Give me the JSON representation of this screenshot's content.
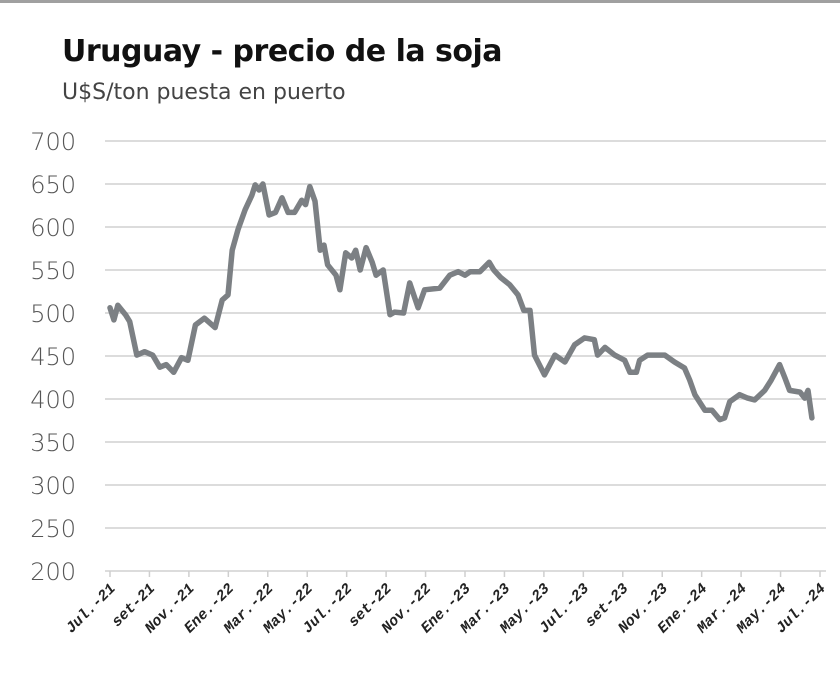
{
  "chart_data": {
    "type": "line",
    "title": "Uruguay - precio de la soja",
    "subtitle": "U$S/ton puesta en puerto",
    "xlabel": "",
    "ylabel": "",
    "ylim": [
      200,
      700
    ],
    "yticks": [
      "700",
      "650",
      "600",
      "550",
      "500",
      "450",
      "400",
      "350",
      "300",
      "250",
      "200"
    ],
    "xticks": [
      "Jul.-21",
      "set-21",
      "Nov.-21",
      "Ene.-22",
      "Mar.-22",
      "May.-22",
      "Jul.-22",
      "set-22",
      "Nov.-22",
      "Ene.-23",
      "Mar.-23",
      "May.-23",
      "Jul.-23",
      "set-23",
      "Nov.-23",
      "Ene.-24",
      "Mar.-24",
      "May.-24",
      "Jul.-24"
    ],
    "xlim": [
      "2021-07-01",
      "2024-07-01"
    ],
    "grid": true,
    "line_color": "#7c8084",
    "points": [
      [
        "2021-07-01",
        506
      ],
      [
        "2021-07-07",
        492
      ],
      [
        "2021-07-13",
        509
      ],
      [
        "2021-07-25",
        498
      ],
      [
        "2021-08-01",
        490
      ],
      [
        "2021-08-12",
        451
      ],
      [
        "2021-08-24",
        455
      ],
      [
        "2021-09-06",
        451
      ],
      [
        "2021-09-17",
        437
      ],
      [
        "2021-09-27",
        440
      ],
      [
        "2021-10-08",
        431
      ],
      [
        "2021-10-20",
        448
      ],
      [
        "2021-10-30",
        445
      ],
      [
        "2021-11-11",
        486
      ],
      [
        "2021-11-25",
        494
      ],
      [
        "2021-12-11",
        483
      ],
      [
        "2021-12-22",
        515
      ],
      [
        "2021-12-31",
        521
      ],
      [
        "2022-01-07",
        573
      ],
      [
        "2022-01-16",
        597
      ],
      [
        "2022-01-27",
        620
      ],
      [
        "2022-02-07",
        637
      ],
      [
        "2022-02-12",
        649
      ],
      [
        "2022-02-18",
        643
      ],
      [
        "2022-02-24",
        650
      ],
      [
        "2022-03-03",
        614
      ],
      [
        "2022-03-13",
        617
      ],
      [
        "2022-03-23",
        634
      ],
      [
        "2022-04-02",
        617
      ],
      [
        "2022-04-12",
        617
      ],
      [
        "2022-04-23",
        631
      ],
      [
        "2022-04-29",
        626
      ],
      [
        "2022-05-05",
        647
      ],
      [
        "2022-05-13",
        630
      ],
      [
        "2022-05-21",
        573
      ],
      [
        "2022-05-27",
        579
      ],
      [
        "2022-06-02",
        556
      ],
      [
        "2022-06-15",
        544
      ],
      [
        "2022-06-21",
        527
      ],
      [
        "2022-06-30",
        570
      ],
      [
        "2022-07-09",
        564
      ],
      [
        "2022-07-15",
        573
      ],
      [
        "2022-07-22",
        550
      ],
      [
        "2022-07-31",
        576
      ],
      [
        "2022-08-10",
        559
      ],
      [
        "2022-08-16",
        544
      ],
      [
        "2022-08-27",
        550
      ],
      [
        "2022-09-07",
        498
      ],
      [
        "2022-09-14",
        501
      ],
      [
        "2022-09-28",
        500
      ],
      [
        "2022-10-07",
        535
      ],
      [
        "2022-10-20",
        506
      ],
      [
        "2022-10-30",
        527
      ],
      [
        "2022-11-23",
        529
      ],
      [
        "2022-12-08",
        544
      ],
      [
        "2022-12-21",
        548
      ],
      [
        "2023-01-01",
        544
      ],
      [
        "2023-01-09",
        548
      ],
      [
        "2023-01-24",
        548
      ],
      [
        "2023-02-08",
        559
      ],
      [
        "2023-02-15",
        550
      ],
      [
        "2023-02-26",
        541
      ],
      [
        "2023-03-09",
        533
      ],
      [
        "2023-03-22",
        521
      ],
      [
        "2023-03-31",
        503
      ],
      [
        "2023-04-10",
        503
      ],
      [
        "2023-04-17",
        451
      ],
      [
        "2023-05-02",
        428
      ],
      [
        "2023-05-18",
        451
      ],
      [
        "2023-06-03",
        443
      ],
      [
        "2023-06-18",
        463
      ],
      [
        "2023-07-03",
        471
      ],
      [
        "2023-07-18",
        469
      ],
      [
        "2023-07-23",
        451
      ],
      [
        "2023-08-04",
        460
      ],
      [
        "2023-08-19",
        451
      ],
      [
        "2023-09-04",
        445
      ],
      [
        "2023-09-12",
        431
      ],
      [
        "2023-09-22",
        431
      ],
      [
        "2023-09-27",
        445
      ],
      [
        "2023-10-09",
        451
      ],
      [
        "2023-10-20",
        451
      ],
      [
        "2023-11-05",
        451
      ],
      [
        "2023-11-20",
        443
      ],
      [
        "2023-12-05",
        436
      ],
      [
        "2023-12-13",
        422
      ],
      [
        "2023-12-21",
        405
      ],
      [
        "2024-01-06",
        387
      ],
      [
        "2024-01-17",
        387
      ],
      [
        "2024-01-29",
        376
      ],
      [
        "2024-02-06",
        378
      ],
      [
        "2024-02-14",
        397
      ],
      [
        "2024-02-29",
        405
      ],
      [
        "2024-03-11",
        401
      ],
      [
        "2024-03-22",
        399
      ],
      [
        "2024-04-07",
        410
      ],
      [
        "2024-04-17",
        422
      ],
      [
        "2024-04-30",
        440
      ],
      [
        "2024-05-08",
        424
      ],
      [
        "2024-05-15",
        410
      ],
      [
        "2024-05-31",
        408
      ],
      [
        "2024-06-08",
        401
      ],
      [
        "2024-06-13",
        410
      ],
      [
        "2024-06-19",
        378
      ]
    ]
  }
}
